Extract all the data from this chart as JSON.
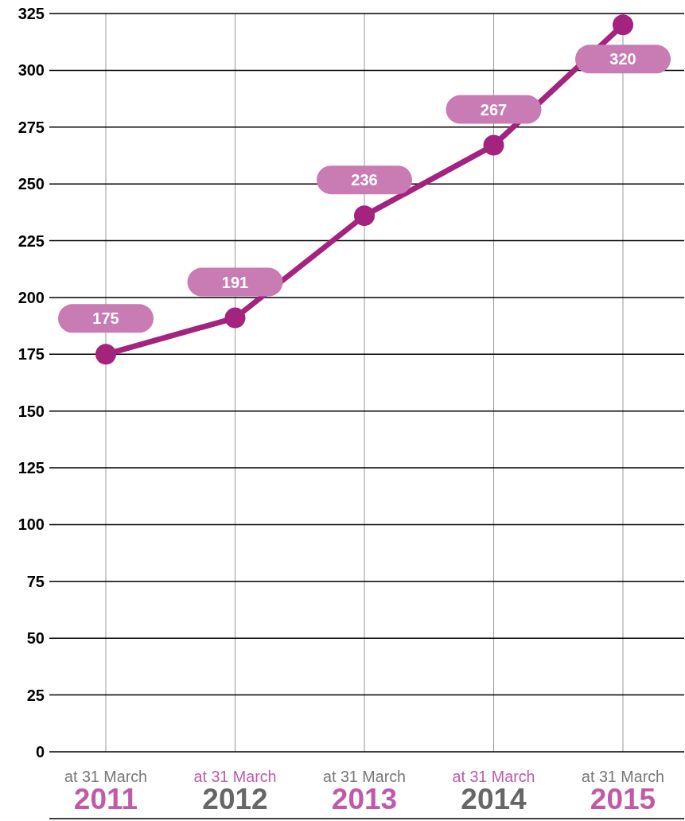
{
  "chart_data": {
    "type": "line",
    "categories": [
      "at 31 March 2011",
      "at 31 March 2012",
      "at 31 March 2013",
      "at 31 March 2014",
      "at 31 March 2015"
    ],
    "series": [
      {
        "color": "#a3237f",
        "values": [
          175,
          191,
          236,
          267,
          320
        ]
      }
    ],
    "ylim": [
      0,
      325
    ],
    "yticks": [
      0,
      25,
      50,
      75,
      100,
      125,
      150,
      175,
      200,
      225,
      250,
      275,
      300,
      325
    ],
    "grid": true,
    "marker": "circle",
    "line_style": "solid",
    "data_labels": true
  }
}
